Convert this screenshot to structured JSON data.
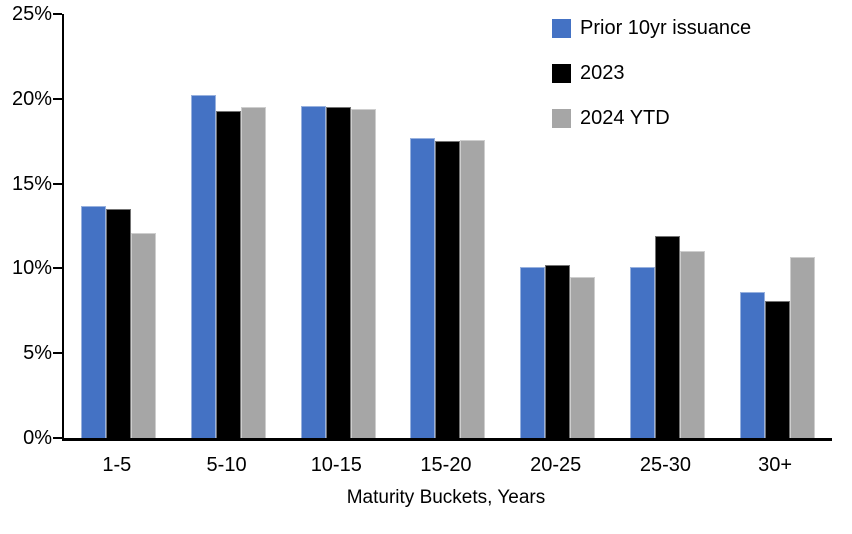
{
  "chart_data": {
    "type": "bar",
    "title": "",
    "xlabel": "Maturity Buckets, Years",
    "ylabel": "",
    "ylim": [
      0,
      25
    ],
    "ytick_step": 5,
    "ytick_labels": [
      "0%",
      "5%",
      "10%",
      "15%",
      "20%",
      "25%"
    ],
    "grid": false,
    "legend_position": "top-right",
    "categories": [
      "1-5",
      "5-10",
      "10-15",
      "15-20",
      "20-25",
      "25-30",
      "30+"
    ],
    "series": [
      {
        "name": "Prior 10yr issuance",
        "color": "#4472C4",
        "values": [
          13.7,
          20.2,
          19.6,
          17.7,
          10.1,
          10.1,
          8.6
        ]
      },
      {
        "name": "2023",
        "color": "#000000",
        "values": [
          13.5,
          19.3,
          19.5,
          17.5,
          10.2,
          11.9,
          8.1
        ]
      },
      {
        "name": "2024 YTD",
        "color": "#A6A6A6",
        "values": [
          12.1,
          19.5,
          19.4,
          17.6,
          9.5,
          11.0,
          10.7
        ]
      }
    ],
    "axis_color": "#000000",
    "background_color": "#FFFFFF"
  }
}
